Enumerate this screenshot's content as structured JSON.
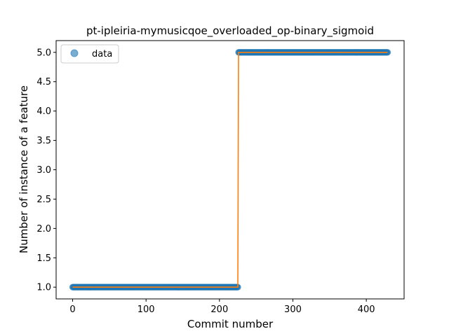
{
  "chart_data": {
    "type": "scatter",
    "title": "pt-ipleiria-mymusicqoe_overloaded_op-binary_sigmoid",
    "xlabel": "Commit number",
    "ylabel": "Number of instance of a feature",
    "xlim": [
      -22.5,
      451.5
    ],
    "ylim": [
      0.8,
      5.2
    ],
    "x_ticks": [
      0,
      100,
      200,
      300,
      400
    ],
    "y_ticks": [
      1.0,
      1.5,
      2.0,
      2.5,
      3.0,
      3.5,
      4.0,
      4.5,
      5.0
    ],
    "x_tick_labels": [
      "0",
      "100",
      "200",
      "300",
      "400"
    ],
    "y_tick_labels": [
      "1.0",
      "1.5",
      "2.0",
      "2.5",
      "3.0",
      "3.5",
      "4.0",
      "4.5",
      "5.0"
    ],
    "grid": false,
    "legend_position": "top-left",
    "series": [
      {
        "name": "data",
        "kind": "scatter",
        "color": "#1f77b4",
        "segments": [
          {
            "x_start": 0,
            "x_end": 225,
            "y": 1.0
          },
          {
            "x_start": 226,
            "x_end": 429,
            "y": 5.0
          }
        ]
      },
      {
        "kind": "line",
        "color": "#ff7f0e",
        "points": [
          [
            0,
            1.0
          ],
          [
            225,
            1.0
          ],
          [
            226,
            5.0
          ],
          [
            429,
            5.0
          ]
        ]
      }
    ]
  }
}
